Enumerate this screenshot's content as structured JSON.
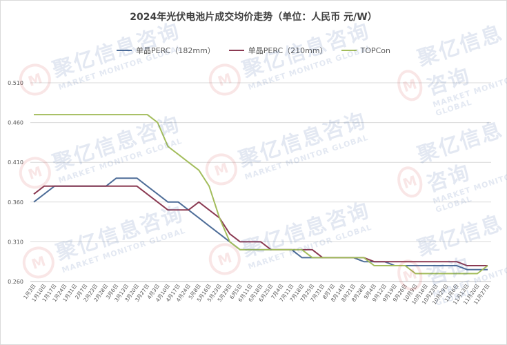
{
  "chart_data": {
    "type": "line",
    "title": "2024年光伏电池片成交均价走势（单位：人民币 元/W）",
    "ylim": [
      0.26,
      0.51
    ],
    "yticks": [
      "0.510",
      "0.460",
      "0.410",
      "0.360",
      "0.310",
      "0.260"
    ],
    "ytick_values": [
      0.51,
      0.46,
      0.41,
      0.36,
      0.31,
      0.26
    ],
    "grid": true,
    "legend_position": "top",
    "categories": [
      "1月3日",
      "1月10日",
      "1月17日",
      "1月24日",
      "1月31日",
      "2月7日",
      "2月23日",
      "2月28日",
      "3月6日",
      "3月13日",
      "3月20日",
      "3月27日",
      "4月3日",
      "4月10日",
      "4月17日",
      "4月24日",
      "5月8日",
      "5月16日",
      "5月23日",
      "5月29日",
      "6月5日",
      "6月11日",
      "6月18日",
      "6月25日",
      "7月4日",
      "7月11日",
      "7月18日",
      "7月25日",
      "7月31日",
      "8月7日",
      "8月14日",
      "8月21日",
      "8月28日",
      "9月4日",
      "9月12日",
      "9月19日",
      "9月26日",
      "10月9日",
      "10月16日",
      "10月23日",
      "10月29日",
      "11月6日",
      "11月13日",
      "11月20日",
      "11月27日"
    ],
    "series": [
      {
        "name": "单晶PERC（182mm）",
        "color": "#4e6d98",
        "values": [
          0.36,
          0.37,
          0.38,
          0.38,
          0.38,
          0.38,
          0.38,
          0.38,
          0.39,
          0.39,
          0.39,
          0.38,
          0.37,
          0.36,
          0.36,
          0.35,
          0.34,
          0.33,
          0.32,
          0.31,
          0.3,
          0.3,
          0.3,
          0.3,
          0.3,
          0.3,
          0.29,
          0.29,
          0.29,
          0.29,
          0.29,
          0.29,
          0.285,
          0.285,
          0.285,
          0.28,
          0.28,
          0.28,
          0.28,
          0.28,
          0.28,
          0.28,
          0.275,
          0.275,
          0.275
        ]
      },
      {
        "name": "单晶PERC（210mm）",
        "color": "#8b3a52",
        "values": [
          0.37,
          0.38,
          0.38,
          0.38,
          0.38,
          0.38,
          0.38,
          0.38,
          0.38,
          0.38,
          0.38,
          0.37,
          0.36,
          0.35,
          0.35,
          0.35,
          0.36,
          0.35,
          0.34,
          0.32,
          0.31,
          0.31,
          0.31,
          0.3,
          0.3,
          0.3,
          0.3,
          0.3,
          0.29,
          0.29,
          0.29,
          0.29,
          0.29,
          0.285,
          0.285,
          0.285,
          0.285,
          0.285,
          0.285,
          0.285,
          0.285,
          0.285,
          0.28,
          0.28,
          0.28
        ]
      },
      {
        "name": "TOPCon",
        "color": "#a3bd5c",
        "values": [
          0.47,
          0.47,
          0.47,
          0.47,
          0.47,
          0.47,
          0.47,
          0.47,
          0.47,
          0.47,
          0.47,
          0.47,
          0.46,
          0.43,
          0.42,
          0.41,
          0.4,
          0.38,
          0.34,
          0.31,
          0.3,
          0.3,
          0.3,
          0.3,
          0.3,
          0.3,
          0.3,
          0.29,
          0.29,
          0.29,
          0.29,
          0.29,
          0.29,
          0.28,
          0.28,
          0.28,
          0.28,
          0.27,
          0.27,
          0.27,
          0.27,
          0.27,
          0.27,
          0.27,
          0.28
        ]
      }
    ]
  },
  "watermark": {
    "cn": "聚亿信息咨询",
    "en": "MARKET MONITOR GLOBAL",
    "logo": "M"
  }
}
